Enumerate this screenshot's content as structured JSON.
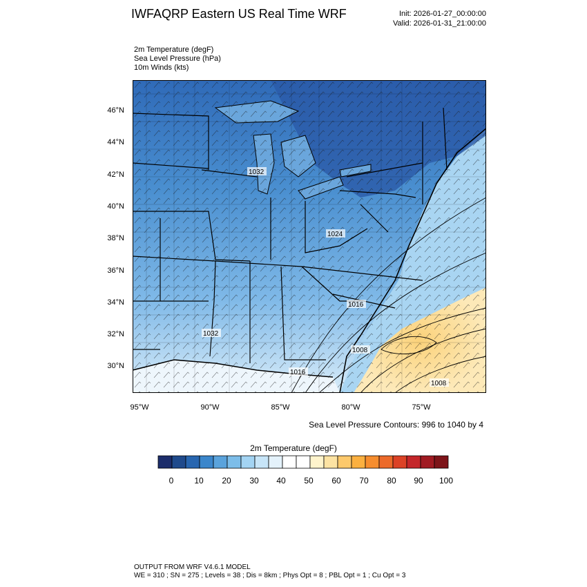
{
  "header": {
    "title": "IWFAQRP Eastern US Real Time WRF",
    "init": "Init: 2026-01-27_00:00:00",
    "valid": "Valid: 2026-01-31_21:00:00"
  },
  "fields": [
    "2m Temperature   (degF)",
    "Sea Level Pressure   (hPa)",
    "10m Winds   (kts)"
  ],
  "map": {
    "lat_labels": [
      "46°N",
      "44°N",
      "42°N",
      "40°N",
      "38°N",
      "36°N",
      "34°N",
      "32°N",
      "30°N"
    ],
    "lon_labels": [
      "95°W",
      "90°W",
      "85°W",
      "80°W",
      "75°W"
    ],
    "pressure_labels": [
      "1032",
      "1024",
      "1016",
      "1032",
      "1008",
      "1016",
      "1008"
    ],
    "land_color": "#4f93d0",
    "warm_color": "#fde3a3",
    "border_color": "#000000"
  },
  "contour_note": "Sea Level Pressure Contours: 996 to 1040 by 4",
  "colorbar": {
    "title": "2m Temperature  (degF)",
    "ticks": [
      "0",
      "10",
      "20",
      "30",
      "40",
      "50",
      "60",
      "70",
      "80",
      "90",
      "100"
    ],
    "colors": [
      "#1c2d6b",
      "#1f4a8c",
      "#2866b0",
      "#3b86cb",
      "#5aa3dc",
      "#7cbde9",
      "#a3d4f3",
      "#c7e5f8",
      "#e4f2fb",
      "#ffffff",
      "#ffffff",
      "#fff4cc",
      "#fde3a3",
      "#fdc96c",
      "#fbb040",
      "#f68d2e",
      "#ec6a2a",
      "#dc4226",
      "#c4262a",
      "#a11a22",
      "#7e1419"
    ]
  },
  "footer": {
    "line1": "OUTPUT FROM WRF V4.6.1 MODEL",
    "line2": "WE = 310 ; SN = 275 ; Levels = 38 ; Dis = 8km ; Phys Opt = 8 ; PBL Opt = 1 ; Cu Opt = 3"
  }
}
